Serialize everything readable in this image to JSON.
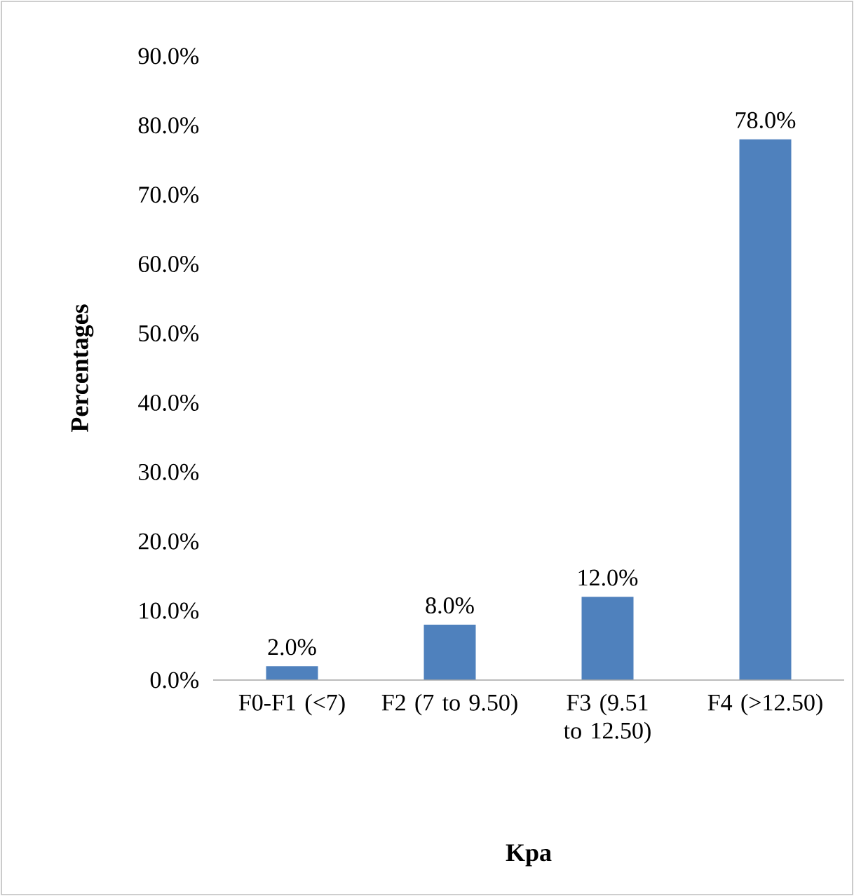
{
  "chart_data": {
    "type": "bar",
    "xlabel": "Kpa",
    "ylabel": "Percentages",
    "categories": [
      "F0-F1 (<7)",
      "F2 (7 to 9.50)",
      "F3 (9.51 to 12.50)",
      "F4 (>12.50)"
    ],
    "values": [
      2,
      8,
      12,
      78
    ],
    "value_labels": [
      "2.0%",
      "8.0%",
      "12.0%",
      "78.0%"
    ],
    "color": "#4f81bd",
    "ylim": [
      0,
      90
    ],
    "yticks": [
      {
        "value": 0,
        "label": "0.0%"
      },
      {
        "value": 10,
        "label": "10.0%"
      },
      {
        "value": 20,
        "label": "20.0%"
      },
      {
        "value": 30,
        "label": "30.0%"
      },
      {
        "value": 40,
        "label": "40.0%"
      },
      {
        "value": 50,
        "label": "50.0%"
      },
      {
        "value": 60,
        "label": "60.0%"
      },
      {
        "value": 70,
        "label": "70.0%"
      },
      {
        "value": 80,
        "label": "80.0%"
      },
      {
        "value": 90,
        "label": "90.0%"
      }
    ]
  }
}
